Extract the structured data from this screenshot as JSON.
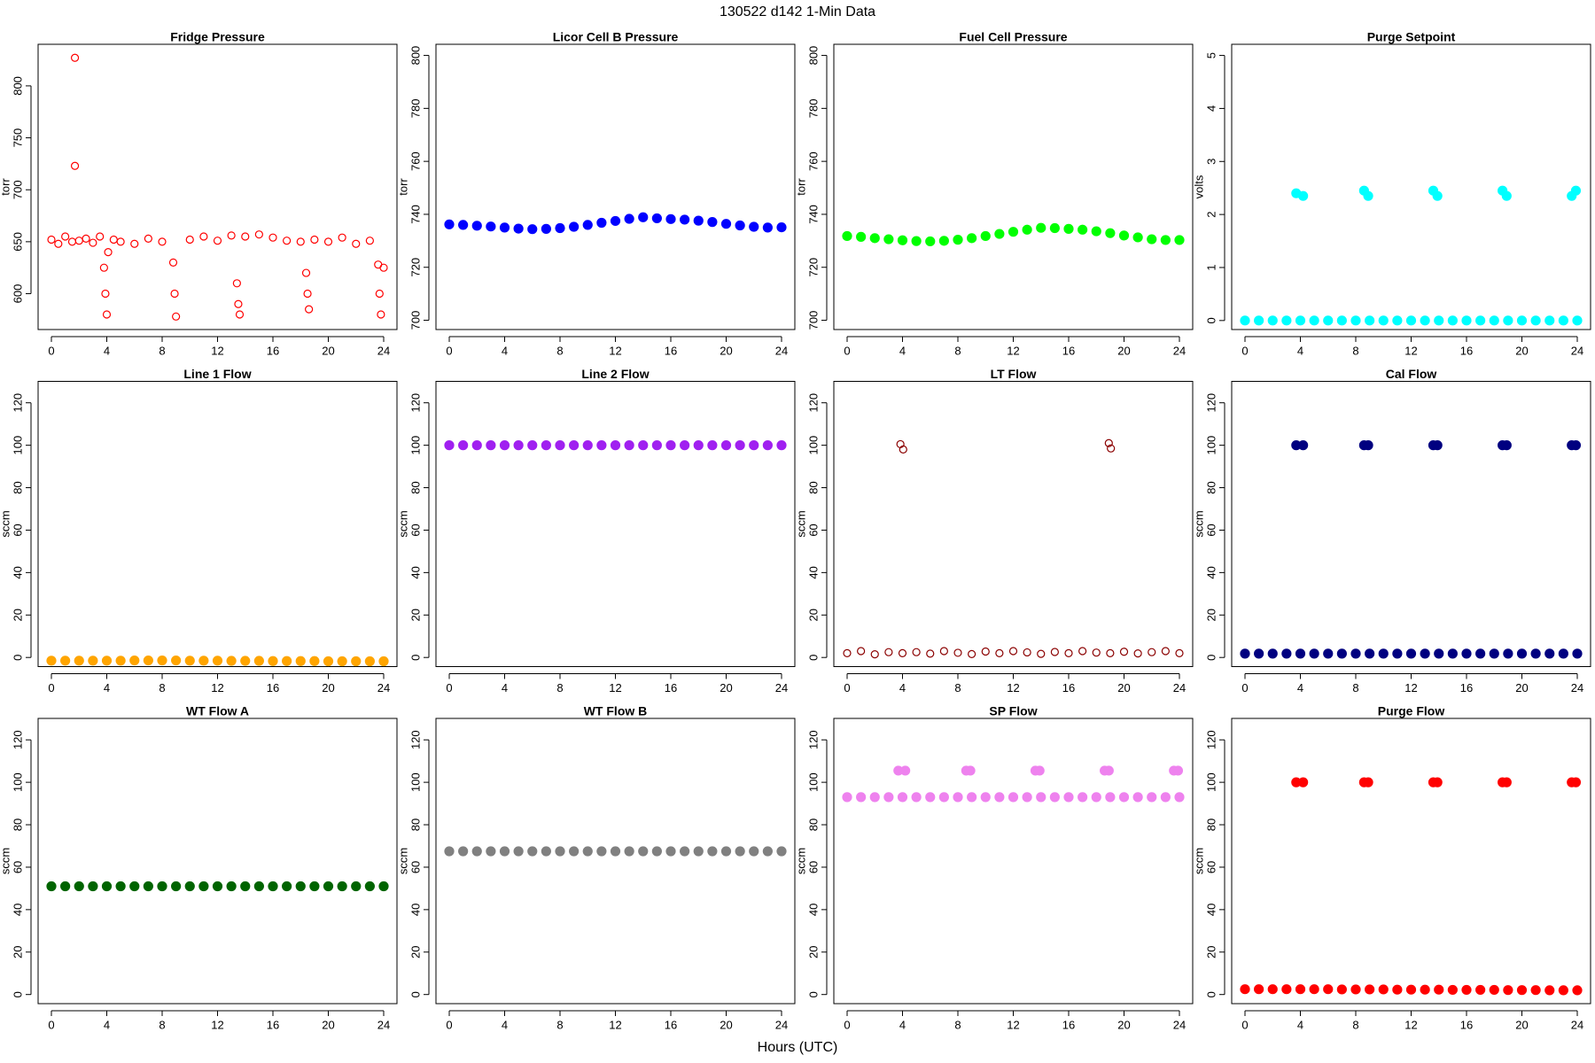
{
  "title": "130522   d142   1-Min Data",
  "xlabel": "Hours (UTC)",
  "chart_data": [
    {
      "type": "scatter",
      "title": "Fridge Pressure",
      "ylabel": "torr",
      "color": "#ff0000",
      "marker_fill": false,
      "xlim": [
        -0.96,
        24.96
      ],
      "xticks": [
        0,
        4,
        8,
        12,
        16,
        20,
        24
      ],
      "ylim": [
        565.5,
        840
      ],
      "yticks": [
        600,
        650,
        700,
        750,
        800
      ],
      "x": [
        0,
        0.5,
        1,
        1.5,
        1.7,
        1.7,
        2,
        2.5,
        3,
        3.5,
        3.8,
        3.9,
        4,
        4.1,
        4.5,
        5,
        6,
        7,
        8,
        8.8,
        8.9,
        9,
        10,
        11,
        12,
        13,
        13.4,
        13.5,
        13.6,
        14,
        15,
        16,
        17,
        18,
        18.4,
        18.5,
        18.6,
        19,
        20,
        21,
        22,
        23,
        23.6,
        23.7,
        23.8,
        24
      ],
      "values": [
        652,
        648,
        655,
        650,
        827,
        723,
        651,
        653,
        649,
        655,
        625,
        600,
        580,
        640,
        652,
        650,
        648,
        653,
        650,
        630,
        600,
        578,
        652,
        655,
        651,
        656,
        610,
        590,
        580,
        655,
        657,
        654,
        651,
        650,
        620,
        600,
        585,
        652,
        650,
        654,
        648,
        651,
        628,
        600,
        580,
        625
      ]
    },
    {
      "type": "scatter",
      "title": "Licor Cell B Pressure",
      "ylabel": "torr",
      "color": "#0000ff",
      "marker_fill": true,
      "xlim": [
        -0.96,
        24.96
      ],
      "xticks": [
        0,
        4,
        8,
        12,
        16,
        20,
        24
      ],
      "ylim": [
        696.5,
        804.2
      ],
      "yticks": [
        700,
        720,
        740,
        760,
        780,
        800
      ],
      "x": [
        0,
        1,
        2,
        3,
        4,
        5,
        6,
        7,
        8,
        9,
        10,
        11,
        12,
        13,
        14,
        15,
        16,
        17,
        18,
        19,
        20,
        21,
        22,
        23,
        24
      ],
      "values": [
        736.2,
        736,
        735.7,
        735.4,
        735,
        734.6,
        734.4,
        734.5,
        734.8,
        735.3,
        736,
        736.8,
        737.5,
        738.3,
        738.9,
        738.5,
        738.2,
        738,
        737.6,
        737.1,
        736.4,
        735.8,
        735.3,
        735,
        735.1
      ]
    },
    {
      "type": "scatter",
      "title": "Fuel Cell Pressure",
      "ylabel": "torr",
      "color": "#00ff00",
      "marker_fill": true,
      "xlim": [
        -0.96,
        24.96
      ],
      "xticks": [
        0,
        4,
        8,
        12,
        16,
        20,
        24
      ],
      "ylim": [
        696.5,
        804.2
      ],
      "yticks": [
        700,
        720,
        740,
        760,
        780,
        800
      ],
      "x": [
        0,
        1,
        2,
        3,
        4,
        5,
        6,
        7,
        8,
        9,
        10,
        11,
        12,
        13,
        14,
        15,
        16,
        17,
        18,
        19,
        20,
        21,
        22,
        23,
        24
      ],
      "values": [
        731.8,
        731.5,
        731,
        730.6,
        730.2,
        729.9,
        729.8,
        730,
        730.4,
        731,
        731.8,
        732.6,
        733.4,
        734.2,
        734.9,
        734.8,
        734.5,
        734.2,
        733.6,
        732.9,
        732,
        731.3,
        730.6,
        730.3,
        730.3
      ]
    },
    {
      "type": "scatter",
      "title": "Purge Setpoint",
      "ylabel": "volts",
      "color": "#00ffff",
      "marker_fill": true,
      "xlim": [
        -0.96,
        24.96
      ],
      "xticks": [
        0,
        4,
        8,
        12,
        16,
        20,
        24
      ],
      "ylim": [
        -0.17,
        5.21
      ],
      "yticks": [
        0,
        1,
        2,
        3,
        4,
        5
      ],
      "x": [
        0,
        1,
        2,
        3,
        3.7,
        4,
        4.2,
        5,
        6,
        7,
        8,
        8.6,
        8.9,
        9,
        10,
        11,
        12,
        13,
        13.6,
        13.9,
        14,
        15,
        16,
        17,
        18,
        18.6,
        18.9,
        19,
        20,
        21,
        22,
        23,
        23.6,
        23.9,
        24
      ],
      "values": [
        0,
        0,
        0,
        0,
        2.4,
        0,
        2.35,
        0,
        0,
        0,
        0,
        2.45,
        2.35,
        0,
        0,
        0,
        0,
        0,
        2.45,
        2.35,
        0,
        0,
        0,
        0,
        0,
        2.45,
        2.35,
        0,
        0,
        0,
        0,
        0,
        2.35,
        2.45,
        0
      ]
    },
    {
      "type": "scatter",
      "title": "Line 1 Flow",
      "ylabel": "sccm",
      "color": "#ffa500",
      "marker_fill": true,
      "xlim": [
        -0.96,
        24.96
      ],
      "xticks": [
        0,
        4,
        8,
        12,
        16,
        20,
        24
      ],
      "ylim": [
        -4.3,
        130.1
      ],
      "yticks": [
        0,
        20,
        40,
        60,
        80,
        100,
        120
      ],
      "x": [
        0,
        1,
        2,
        3,
        4,
        5,
        6,
        7,
        8,
        9,
        10,
        11,
        12,
        13,
        14,
        15,
        16,
        17,
        18,
        19,
        20,
        21,
        22,
        23,
        24
      ],
      "values": [
        -1.5,
        -1.5,
        -1.5,
        -1.5,
        -1.5,
        -1.5,
        -1.4,
        -1.4,
        -1.4,
        -1.4,
        -1.5,
        -1.5,
        -1.5,
        -1.6,
        -1.6,
        -1.6,
        -1.7,
        -1.7,
        -1.7,
        -1.7,
        -1.8,
        -1.8,
        -1.8,
        -1.8,
        -1.8
      ]
    },
    {
      "type": "scatter",
      "title": "Line 2 Flow",
      "ylabel": "sccm",
      "color": "#a020f0",
      "marker_fill": true,
      "xlim": [
        -0.96,
        24.96
      ],
      "xticks": [
        0,
        4,
        8,
        12,
        16,
        20,
        24
      ],
      "ylim": [
        -4.3,
        130.1
      ],
      "yticks": [
        0,
        20,
        40,
        60,
        80,
        100,
        120
      ],
      "x": [
        0,
        1,
        2,
        3,
        4,
        5,
        6,
        7,
        8,
        9,
        10,
        11,
        12,
        13,
        14,
        15,
        16,
        17,
        18,
        19,
        20,
        21,
        22,
        23,
        24
      ],
      "values": [
        100,
        100,
        100,
        100,
        100,
        100,
        100,
        100,
        100,
        100,
        100,
        100,
        100,
        100,
        100,
        100,
        100,
        100,
        100,
        100,
        100,
        100,
        100,
        100,
        100
      ]
    },
    {
      "type": "scatter",
      "title": "LT Flow",
      "ylabel": "sccm",
      "color": "#8b0000",
      "marker_fill": false,
      "xlim": [
        -0.96,
        24.96
      ],
      "xticks": [
        0,
        4,
        8,
        12,
        16,
        20,
        24
      ],
      "ylim": [
        -4.3,
        130.1
      ],
      "yticks": [
        0,
        20,
        40,
        60,
        80,
        100,
        120
      ],
      "x": [
        0,
        1,
        2,
        3,
        3.85,
        4,
        4.05,
        5,
        6,
        7,
        8,
        9,
        10,
        11,
        12,
        13,
        14,
        15,
        16,
        17,
        18,
        18.9,
        19,
        19.05,
        20,
        21,
        22,
        23,
        24
      ],
      "values": [
        2,
        3,
        1.5,
        2.5,
        100.5,
        2,
        98,
        2.5,
        1.8,
        3,
        2.2,
        1.6,
        2.8,
        2,
        3,
        2.4,
        1.7,
        2.6,
        2,
        3,
        2.3,
        101,
        2,
        98.5,
        2.7,
        1.9,
        2.5,
        3,
        2
      ]
    },
    {
      "type": "scatter",
      "title": "Cal Flow",
      "ylabel": "sccm",
      "color": "#000080",
      "marker_fill": true,
      "xlim": [
        -0.96,
        24.96
      ],
      "xticks": [
        0,
        4,
        8,
        12,
        16,
        20,
        24
      ],
      "ylim": [
        -4.3,
        130.1
      ],
      "yticks": [
        0,
        20,
        40,
        60,
        80,
        100,
        120
      ],
      "x": [
        0,
        1,
        2,
        3,
        3.7,
        4,
        4.2,
        5,
        6,
        7,
        8,
        8.6,
        8.9,
        9,
        10,
        11,
        12,
        13,
        13.6,
        13.9,
        14,
        15,
        16,
        17,
        18,
        18.6,
        18.9,
        19,
        20,
        21,
        22,
        23,
        23.6,
        23.9,
        24
      ],
      "values": [
        1.8,
        1.8,
        1.8,
        1.8,
        100,
        1.8,
        100,
        1.8,
        1.8,
        1.8,
        1.8,
        100,
        100,
        1.8,
        1.8,
        1.8,
        1.8,
        1.8,
        100,
        100,
        1.8,
        1.8,
        1.8,
        1.8,
        1.8,
        100,
        100,
        1.8,
        1.8,
        1.8,
        1.8,
        1.8,
        100,
        100,
        1.8
      ]
    },
    {
      "type": "scatter",
      "title": "WT Flow A",
      "ylabel": "sccm",
      "color": "#006400",
      "marker_fill": true,
      "xlim": [
        -0.96,
        24.96
      ],
      "xticks": [
        0,
        4,
        8,
        12,
        16,
        20,
        24
      ],
      "ylim": [
        -4.3,
        130.1
      ],
      "yticks": [
        0,
        20,
        40,
        60,
        80,
        100,
        120
      ],
      "x": [
        0,
        1,
        2,
        3,
        4,
        5,
        6,
        7,
        8,
        9,
        10,
        11,
        12,
        13,
        14,
        15,
        16,
        17,
        18,
        19,
        20,
        21,
        22,
        23,
        24
      ],
      "values": [
        51,
        51,
        51,
        51,
        51,
        51,
        51,
        51,
        51,
        51,
        51,
        51,
        51,
        51,
        51,
        51,
        51,
        51,
        51,
        51,
        51,
        51,
        51,
        51,
        51
      ]
    },
    {
      "type": "scatter",
      "title": "WT Flow B",
      "ylabel": "sccm",
      "color": "#808080",
      "marker_fill": true,
      "xlim": [
        -0.96,
        24.96
      ],
      "xticks": [
        0,
        4,
        8,
        12,
        16,
        20,
        24
      ],
      "ylim": [
        -4.3,
        130.1
      ],
      "yticks": [
        0,
        20,
        40,
        60,
        80,
        100,
        120
      ],
      "x": [
        0,
        1,
        2,
        3,
        4,
        5,
        6,
        7,
        8,
        9,
        10,
        11,
        12,
        13,
        14,
        15,
        16,
        17,
        18,
        19,
        20,
        21,
        22,
        23,
        24
      ],
      "values": [
        67.5,
        67.5,
        67.5,
        67.5,
        67.5,
        67.5,
        67.5,
        67.5,
        67.5,
        67.5,
        67.5,
        67.5,
        67.5,
        67.5,
        67.5,
        67.5,
        67.5,
        67.5,
        67.5,
        67.5,
        67.5,
        67.5,
        67.5,
        67.5,
        67.5
      ]
    },
    {
      "type": "scatter",
      "title": "SP Flow",
      "ylabel": "sccm",
      "color": "#ee82ee",
      "marker_fill": true,
      "xlim": [
        -0.96,
        24.96
      ],
      "xticks": [
        0,
        4,
        8,
        12,
        16,
        20,
        24
      ],
      "ylim": [
        -4.3,
        130.1
      ],
      "yticks": [
        0,
        20,
        40,
        60,
        80,
        100,
        120
      ],
      "x": [
        0,
        1,
        2,
        3,
        3.7,
        4,
        4.2,
        5,
        6,
        7,
        8,
        8.6,
        8.9,
        9,
        10,
        11,
        12,
        13,
        13.6,
        13.9,
        14,
        15,
        16,
        17,
        18,
        18.6,
        18.9,
        19,
        20,
        21,
        22,
        23,
        23.6,
        23.9,
        24
      ],
      "values": [
        93,
        93,
        93,
        93,
        105.5,
        93,
        105.5,
        93,
        93,
        93,
        93,
        105.5,
        105.5,
        93,
        93,
        93,
        93,
        93,
        105.5,
        105.5,
        93,
        93,
        93,
        93,
        93,
        105.5,
        105.5,
        93,
        93,
        93,
        93,
        93,
        105.5,
        105.5,
        93
      ]
    },
    {
      "type": "scatter",
      "title": "Purge Flow",
      "ylabel": "sccm",
      "color": "#ff0000",
      "marker_fill": true,
      "xlim": [
        -0.96,
        24.96
      ],
      "xticks": [
        0,
        4,
        8,
        12,
        16,
        20,
        24
      ],
      "ylim": [
        -4.3,
        130.1
      ],
      "yticks": [
        0,
        20,
        40,
        60,
        80,
        100,
        120
      ],
      "x": [
        0,
        1,
        2,
        3,
        3.7,
        4,
        4.2,
        5,
        6,
        7,
        8,
        8.6,
        8.9,
        9,
        10,
        11,
        12,
        13,
        13.6,
        13.9,
        14,
        15,
        16,
        17,
        18,
        18.6,
        18.9,
        19,
        20,
        21,
        22,
        23,
        23.6,
        23.9,
        24
      ],
      "values": [
        2.5,
        2.5,
        2.5,
        2.5,
        100,
        2.5,
        100,
        2.5,
        2.5,
        2.4,
        2.4,
        100,
        100,
        2.4,
        2.4,
        2.3,
        2.3,
        2.3,
        100,
        100,
        2.3,
        2.2,
        2.2,
        2.2,
        2.2,
        100,
        100,
        2.1,
        2.1,
        2.1,
        2,
        2,
        100,
        100,
        2
      ]
    }
  ]
}
